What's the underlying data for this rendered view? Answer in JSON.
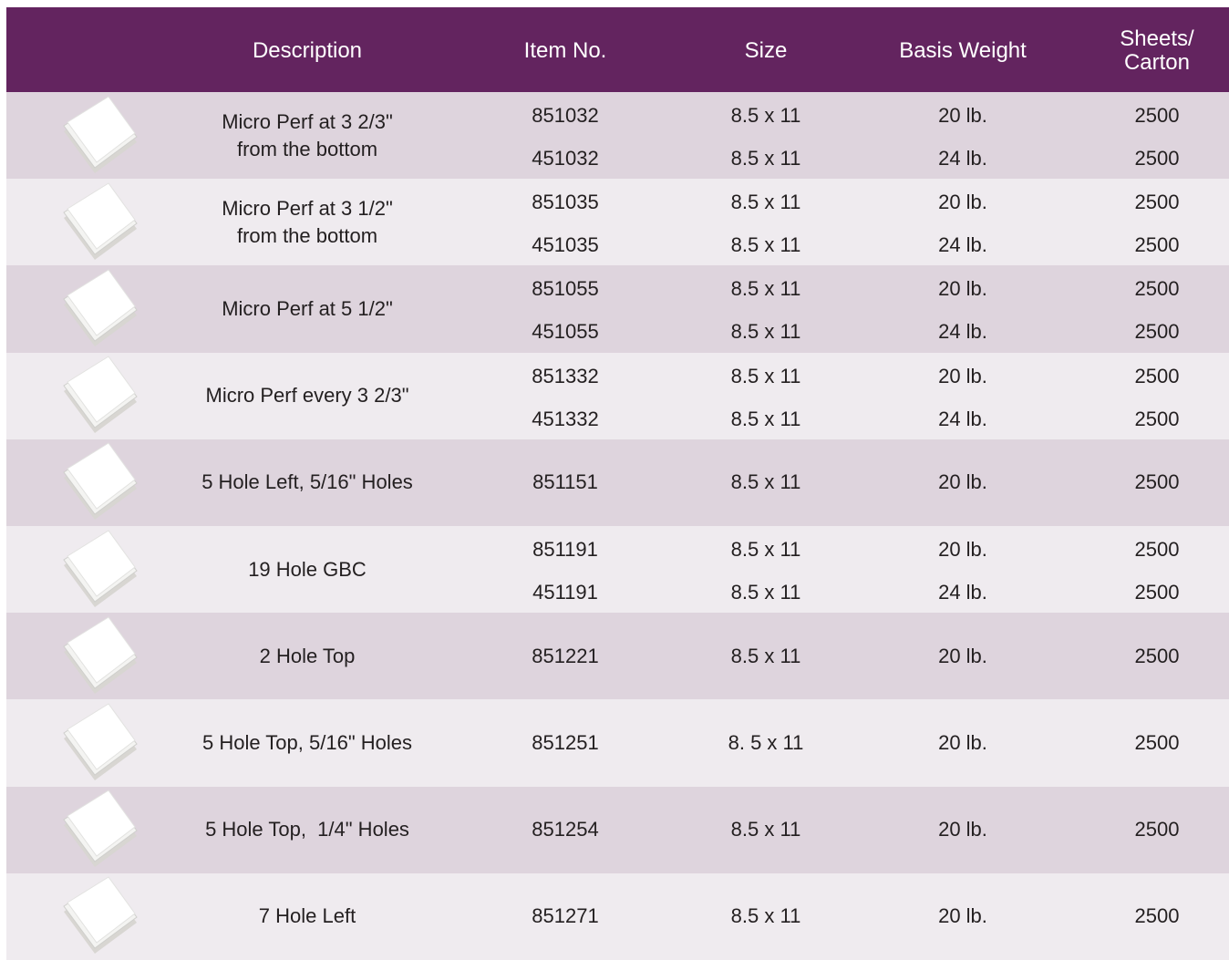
{
  "header": {
    "columns": [
      "Description",
      "Item No.",
      "Size",
      "Basis Weight",
      "Sheets/ Carton"
    ]
  },
  "rows": [
    {
      "description": [
        "Micro Perf at 3 2/3\"",
        "from the bottom"
      ],
      "items": [
        [
          "851032",
          "8.5 x 11",
          "20 lb.",
          "2500"
        ],
        [
          "451032",
          "8.5 x 11",
          "24 lb.",
          "2500"
        ]
      ]
    },
    {
      "description": [
        "Micro Perf at 3 1/2\"",
        "from the bottom"
      ],
      "items": [
        [
          "851035",
          "8.5 x 11",
          "20 lb.",
          "2500"
        ],
        [
          "451035",
          "8.5 x 11",
          "24 lb.",
          "2500"
        ]
      ]
    },
    {
      "description": [
        "Micro Perf at 5 1/2\""
      ],
      "items": [
        [
          "851055",
          "8.5 x 11",
          "20 lb.",
          "2500"
        ],
        [
          "451055",
          "8.5 x 11",
          "24 lb.",
          "2500"
        ]
      ]
    },
    {
      "description": [
        "Micro Perf every 3 2/3\""
      ],
      "items": [
        [
          "851332",
          "8.5 x 11",
          "20 lb.",
          "2500"
        ],
        [
          "451332",
          "8.5 x 11",
          "24 lb.",
          "2500"
        ]
      ]
    },
    {
      "description": [
        "5 Hole Left, 5/16\" Holes"
      ],
      "items": [
        [
          "851151",
          "8.5 x 11",
          "20 lb.",
          "2500"
        ]
      ]
    },
    {
      "description": [
        "19 Hole GBC"
      ],
      "items": [
        [
          "851191",
          "8.5 x 11",
          "20 lb.",
          "2500"
        ],
        [
          "451191",
          "8.5 x 11",
          "24 lb.",
          "2500"
        ]
      ]
    },
    {
      "description": [
        "2 Hole Top"
      ],
      "items": [
        [
          "851221",
          "8.5 x 11",
          "20 lb.",
          "2500"
        ]
      ]
    },
    {
      "description": [
        "5 Hole Top, 5/16\" Holes"
      ],
      "items": [
        [
          "851251",
          "8. 5 x 11",
          "20 lb.",
          "2500"
        ]
      ]
    },
    {
      "description": [
        "5 Hole Top,  1/4\" Holes"
      ],
      "items": [
        [
          "851254",
          "8.5 x 11",
          "20 lb.",
          "2500"
        ]
      ]
    },
    {
      "description": [
        "7 Hole Left"
      ],
      "items": [
        [
          "851271",
          "8.5 x 11",
          "20 lb.",
          "2500"
        ]
      ]
    }
  ]
}
